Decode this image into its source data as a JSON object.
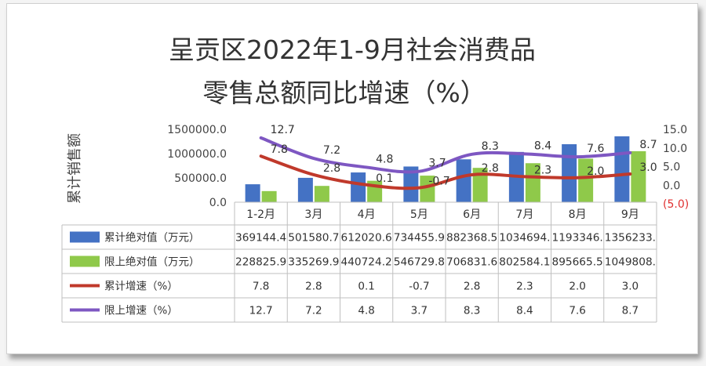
{
  "chart_data": {
    "type": "bar",
    "title_lines": [
      "呈贡区2022年1-9月社会消费品",
      "零售总额同比增速（%）"
    ],
    "ylabel": "累计销售额",
    "categories": [
      "1-2月",
      "3月",
      "4月",
      "5月",
      "6月",
      "7月",
      "8月",
      "9月"
    ],
    "ylim": [
      0,
      1500000
    ],
    "yticks": [
      "1500000.0",
      "1000000.0",
      "500000.0",
      "0.0"
    ],
    "y2lim": [
      -5,
      15
    ],
    "y2ticks": [
      "15.0",
      "10.0",
      "5.0",
      "0.0",
      "(5.0)"
    ],
    "grid": false,
    "legend": "data-table",
    "series": [
      {
        "name": "累计绝对值（万元）",
        "kind": "bar",
        "axis": "left",
        "color": "#4472c4",
        "values": [
          369144.4,
          501580.7,
          612020.6,
          734455.9,
          882368.5,
          1034694,
          1193346,
          1356233
        ],
        "table": [
          "369144.4",
          "501580.7",
          "612020.6",
          "734455.9",
          "882368.5",
          "1034694.",
          "1193346.",
          "1356233."
        ]
      },
      {
        "name": "限上绝对值（万元）",
        "kind": "bar",
        "axis": "left",
        "color": "#8fc94a",
        "values": [
          228825.9,
          335269.9,
          440724.2,
          546729.8,
          706831.6,
          802584.1,
          895665.5,
          1049808
        ],
        "table": [
          "228825.9",
          "335269.9",
          "440724.2",
          "546729.8",
          "706831.6",
          "802584.1",
          "895665.5",
          "1049808."
        ]
      },
      {
        "name": "累计增速（%）",
        "kind": "line",
        "axis": "right",
        "color": "#c0392b",
        "values": [
          7.8,
          2.8,
          0.1,
          -0.7,
          2.8,
          2.3,
          2.0,
          3.0
        ],
        "table": [
          "7.8",
          "2.8",
          "0.1",
          "-0.7",
          "2.8",
          "2.3",
          "2.0",
          "3.0"
        ]
      },
      {
        "name": "限上增速（%）",
        "kind": "line",
        "axis": "right",
        "color": "#7e57c2",
        "values": [
          12.7,
          7.2,
          4.8,
          3.7,
          8.3,
          8.4,
          7.6,
          8.7
        ],
        "table": [
          "12.7",
          "7.2",
          "4.8",
          "3.7",
          "8.3",
          "8.4",
          "7.6",
          "8.7"
        ]
      }
    ],
    "colors": {
      "negative_tick": "#e03030",
      "axis_text": "#444444",
      "grid": "#bfbfbf"
    }
  }
}
